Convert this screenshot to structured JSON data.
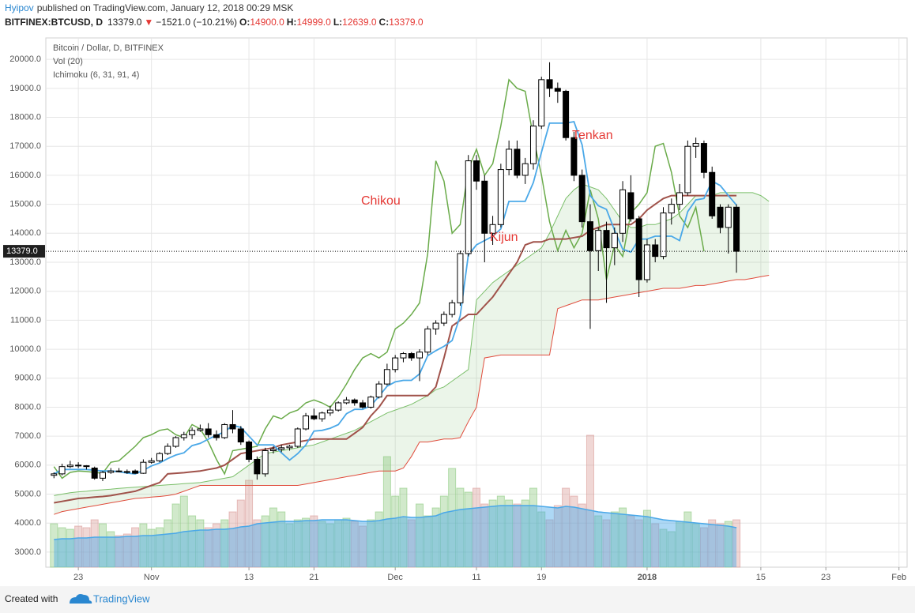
{
  "header": {
    "author": "Hyipov",
    "published": "published on TradingView.com, January 12, 2018 00:29 MSK"
  },
  "quote": {
    "symbol": "BITFINEX:BTCUSD, D",
    "last": "13379.0",
    "arrow": "▼",
    "change": "−1521.0 (−10.21%)",
    "ohlc": [
      {
        "label": "O:",
        "value": "14900.0"
      },
      {
        "label": "H:",
        "value": "14999.0"
      },
      {
        "label": "L:",
        "value": "12639.0"
      },
      {
        "label": "C:",
        "value": "13379.0"
      }
    ]
  },
  "footer": {
    "created": "Created with",
    "brand": "TradingView"
  },
  "chart_data": {
    "type": "candlestick",
    "legend": [
      "Bitcoin / Dollar, D, BITFINEX",
      "Vol (20)",
      "Ichimoku (6, 31, 91, 4)"
    ],
    "annotations": [
      "Tenkan",
      "Chikou",
      "Kijun"
    ],
    "x": [
      "2017-10-20",
      "2017-10-21",
      "2017-10-22",
      "2017-10-23",
      "2017-10-24",
      "2017-10-25",
      "2017-10-26",
      "2017-10-27",
      "2017-10-28",
      "2017-10-29",
      "2017-10-30",
      "2017-10-31",
      "2017-11-01",
      "2017-11-02",
      "2017-11-03",
      "2017-11-04",
      "2017-11-05",
      "2017-11-06",
      "2017-11-07",
      "2017-11-08",
      "2017-11-09",
      "2017-11-10",
      "2017-11-11",
      "2017-11-12",
      "2017-11-13",
      "2017-11-14",
      "2017-11-15",
      "2017-11-16",
      "2017-11-17",
      "2017-11-18",
      "2017-11-19",
      "2017-11-20",
      "2017-11-21",
      "2017-11-22",
      "2017-11-23",
      "2017-11-24",
      "2017-11-25",
      "2017-11-26",
      "2017-11-27",
      "2017-11-28",
      "2017-11-29",
      "2017-11-30",
      "2017-12-01",
      "2017-12-02",
      "2017-12-03",
      "2017-12-04",
      "2017-12-05",
      "2017-12-06",
      "2017-12-07",
      "2017-12-08",
      "2017-12-09",
      "2017-12-10",
      "2017-12-11",
      "2017-12-12",
      "2017-12-13",
      "2017-12-14",
      "2017-12-15",
      "2017-12-16",
      "2017-12-17",
      "2017-12-18",
      "2017-12-19",
      "2017-12-20",
      "2017-12-21",
      "2017-12-22",
      "2017-12-23",
      "2017-12-24",
      "2017-12-25",
      "2017-12-26",
      "2017-12-27",
      "2017-12-28",
      "2017-12-29",
      "2017-12-30",
      "2017-12-31",
      "2018-01-01",
      "2018-01-02",
      "2018-01-03",
      "2018-01-04",
      "2018-01-05",
      "2018-01-06",
      "2018-01-07",
      "2018-01-08",
      "2018-01-09",
      "2018-01-10",
      "2018-01-11",
      "2018-01-12",
      "2018-01-13",
      "2018-01-14",
      "2018-01-15",
      "2018-01-16"
    ],
    "open": [
      5650,
      5700,
      5950,
      6000,
      5980,
      5900,
      5550,
      5750,
      5800,
      5780,
      5800,
      5720,
      6100,
      6150,
      6400,
      6650,
      6950,
      7050,
      7200,
      7250,
      7050,
      6950,
      7400,
      7250,
      6800,
      6200,
      5700,
      6500,
      6550,
      6600,
      6650,
      7250,
      7700,
      7600,
      7800,
      7900,
      8150,
      8250,
      8150,
      8000,
      8350,
      8800,
      9300,
      9700,
      9850,
      9700,
      9900,
      10700,
      10900,
      11200,
      11600,
      13300,
      16500,
      15800,
      14000,
      14300,
      16200,
      16900,
      16000,
      16400,
      17700,
      19300,
      19000,
      18900,
      17300,
      16000,
      14400,
      13400,
      14100,
      13500,
      14000,
      15400,
      14500,
      12400,
      13600,
      13200,
      14700,
      15000,
      15400,
      17000,
      17100,
      16100,
      14900,
      14200,
      14900,
      null,
      null,
      null,
      null
    ],
    "high": [
      5750,
      6050,
      6150,
      6100,
      6000,
      5950,
      5800,
      5900,
      5900,
      5850,
      5850,
      6200,
      6250,
      6450,
      6750,
      7000,
      7150,
      7300,
      7400,
      7450,
      7200,
      7450,
      7900,
      7350,
      6850,
      6300,
      6600,
      6650,
      6700,
      6700,
      7300,
      7800,
      7950,
      7850,
      8050,
      8200,
      8350,
      8300,
      8250,
      8400,
      8900,
      9500,
      9800,
      9900,
      9900,
      10000,
      10800,
      11000,
      11300,
      11700,
      13400,
      16700,
      16700,
      16000,
      14600,
      16400,
      17200,
      17200,
      16600,
      17900,
      19400,
      19900,
      19200,
      18950,
      17500,
      16200,
      15000,
      14200,
      14400,
      14200,
      15800,
      16000,
      14600,
      13800,
      13800,
      14900,
      15200,
      15700,
      17200,
      17300,
      17200,
      16300,
      15000,
      15000,
      14999,
      null,
      null,
      null,
      null
    ],
    "low": [
      5550,
      5650,
      5900,
      5900,
      5850,
      5500,
      5450,
      5700,
      5750,
      5700,
      5700,
      5700,
      6050,
      6100,
      6350,
      6600,
      6850,
      6900,
      7150,
      6950,
      6850,
      6900,
      7100,
      6700,
      6100,
      5500,
      5600,
      6400,
      6450,
      6500,
      6600,
      7200,
      7550,
      7500,
      7700,
      7850,
      8100,
      8050,
      7950,
      7950,
      8300,
      8750,
      9200,
      9550,
      9600,
      8900,
      9800,
      10500,
      10800,
      11100,
      11500,
      13200,
      15500,
      13000,
      13600,
      14200,
      16000,
      15900,
      15700,
      16200,
      17600,
      18700,
      18500,
      17200,
      15800,
      14200,
      10700,
      12700,
      11600,
      12900,
      13700,
      14400,
      11800,
      12300,
      13000,
      13100,
      14300,
      14800,
      15300,
      16600,
      15900,
      14500,
      14000,
      13300,
      12639,
      null,
      null,
      null,
      null
    ],
    "close": [
      5700,
      5950,
      6000,
      5980,
      5950,
      5550,
      5750,
      5800,
      5780,
      5750,
      5720,
      6100,
      6150,
      6400,
      6650,
      6950,
      7050,
      7200,
      7250,
      7050,
      6950,
      7400,
      7250,
      6800,
      6200,
      5700,
      6500,
      6550,
      6600,
      6650,
      7250,
      7700,
      7600,
      7800,
      7900,
      8150,
      8250,
      8150,
      8000,
      8350,
      8800,
      9300,
      9700,
      9850,
      9700,
      9900,
      10700,
      10900,
      11200,
      11600,
      13300,
      16500,
      15800,
      14000,
      14300,
      16200,
      16900,
      16000,
      16400,
      17700,
      19300,
      19000,
      18900,
      17300,
      16000,
      14400,
      13400,
      14100,
      13500,
      14000,
      15500,
      14500,
      12400,
      13600,
      13200,
      14700,
      15000,
      15400,
      17000,
      17100,
      16100,
      14600,
      14200,
      14900,
      13379,
      null,
      null,
      null,
      null
    ],
    "volume": [
      55,
      50,
      48,
      52,
      50,
      60,
      55,
      45,
      40,
      42,
      50,
      55,
      48,
      50,
      60,
      80,
      90,
      65,
      60,
      50,
      55,
      60,
      70,
      85,
      110,
      60,
      65,
      75,
      70,
      55,
      60,
      62,
      65,
      58,
      55,
      60,
      62,
      58,
      52,
      60,
      70,
      140,
      90,
      100,
      60,
      80,
      65,
      75,
      90,
      125,
      100,
      95,
      100,
      80,
      85,
      90,
      85,
      80,
      85,
      100,
      70,
      60,
      78,
      100,
      90,
      80,
      167,
      65,
      60,
      70,
      75,
      65,
      60,
      72,
      55,
      48,
      45,
      58,
      70,
      55,
      50,
      60,
      55,
      58,
      60,
      null,
      null,
      null,
      null
    ],
    "volume_ma": [
      35,
      36,
      36,
      37,
      37,
      38,
      38,
      38,
      38,
      39,
      39,
      40,
      40,
      41,
      42,
      43,
      45,
      46,
      47,
      47,
      48,
      48,
      49,
      51,
      52,
      55,
      56,
      57,
      58,
      58,
      58,
      59,
      59,
      60,
      60,
      60,
      60,
      59,
      58,
      58,
      59,
      61,
      62,
      64,
      63,
      63,
      64,
      65,
      69,
      71,
      73,
      74,
      75,
      76,
      77,
      78,
      78,
      78,
      78,
      78,
      77,
      76,
      75,
      77,
      76,
      74,
      72,
      70,
      69,
      68,
      67,
      66,
      65,
      64,
      62,
      60,
      59,
      58,
      57,
      56,
      55,
      54,
      53,
      52,
      50,
      null,
      null,
      null,
      null
    ],
    "tenkan": [
      5700,
      5850,
      5850,
      5850,
      5850,
      5825,
      5800,
      5800,
      5775,
      5725,
      5700,
      5825,
      5975,
      6075,
      6225,
      6350,
      6425,
      6675,
      6750,
      6900,
      7025,
      7150,
      7375,
      7300,
      7000,
      6700,
      6700,
      6700,
      6425,
      6175,
      6400,
      6700,
      7175,
      7200,
      7275,
      7400,
      7775,
      7925,
      7925,
      8050,
      8375,
      8725,
      8875,
      8925,
      8925,
      9150,
      9775,
      9950,
      10100,
      10300,
      11150,
      13250,
      13600,
      13750,
      13900,
      14150,
      15100,
      15100,
      15100,
      15750,
      16800,
      17800,
      17800,
      17800,
      17850,
      17050,
      15300,
      14950,
      14825,
      14100,
      13450,
      13350,
      13800,
      13800,
      13900,
      13900,
      13900,
      13750,
      14750,
      15150,
      15200,
      15800,
      15650,
      15300,
      14970,
      null,
      null,
      null,
      null
    ],
    "kijun": [
      4700,
      4750,
      4800,
      4850,
      4870,
      4900,
      4920,
      4950,
      5000,
      5050,
      5100,
      5200,
      5300,
      5400,
      5700,
      5720,
      5740,
      5770,
      5800,
      5850,
      5900,
      6000,
      6200,
      6400,
      6450,
      6500,
      6550,
      6600,
      6700,
      6750,
      6800,
      6850,
      6900,
      6900,
      6900,
      6900,
      6900,
      7100,
      7300,
      7700,
      8000,
      8400,
      8400,
      8400,
      8400,
      8400,
      8400,
      8700,
      9700,
      10800,
      11000,
      11200,
      11200,
      11500,
      11800,
      12200,
      12600,
      13000,
      13600,
      13700,
      13700,
      13800,
      13800,
      13800,
      13850,
      13900,
      14100,
      14200,
      14300,
      14300,
      14300,
      14300,
      14500,
      14800,
      15000,
      15200,
      15300,
      15300,
      15300,
      15300,
      15300,
      15300,
      15300,
      15300,
      15300,
      null,
      null,
      null,
      null
    ],
    "chikou": [
      5950,
      5550,
      5750,
      5800,
      5780,
      5750,
      5720,
      6100,
      6150,
      6400,
      6650,
      6950,
      7050,
      7200,
      7250,
      7050,
      6950,
      7400,
      7250,
      6800,
      6200,
      5700,
      6500,
      6550,
      6600,
      6650,
      7250,
      7700,
      7600,
      7800,
      7900,
      8150,
      8250,
      8150,
      8000,
      8350,
      8800,
      9300,
      9700,
      9850,
      9700,
      9900,
      10700,
      10900,
      11200,
      11600,
      13300,
      16500,
      15800,
      14000,
      14300,
      16200,
      16900,
      16000,
      16400,
      17700,
      19300,
      19000,
      18900,
      17300,
      16000,
      14400,
      13400,
      14100,
      13500,
      14000,
      15500,
      14500,
      12400,
      13600,
      13200,
      14700,
      15000,
      15400,
      17000,
      17100,
      16100,
      14600,
      14200,
      14900,
      13379,
      null,
      null,
      null,
      null,
      null,
      null,
      null,
      null
    ],
    "span_a": [
      4950,
      5000,
      5050,
      5080,
      5100,
      5130,
      5150,
      5170,
      5200,
      5220,
      5240,
      5260,
      5280,
      5300,
      5320,
      5340,
      5360,
      5380,
      5400,
      5450,
      5500,
      5550,
      5600,
      5800,
      6000,
      6200,
      6400,
      6450,
      6500,
      6550,
      6600,
      6650,
      6700,
      6800,
      6900,
      7000,
      7100,
      7200,
      7350,
      7500,
      7650,
      7800,
      7900,
      8000,
      8100,
      8250,
      8400,
      8600,
      8700,
      8900,
      9100,
      9300,
      11700,
      12000,
      12300,
      12500,
      12700,
      12900,
      13100,
      13300,
      13500,
      14000,
      14600,
      15200,
      15500,
      15700,
      15600,
      15500,
      15200,
      14800,
      14400,
      14200,
      14200,
      14300,
      14300,
      14400,
      14500,
      14700,
      15000,
      15300,
      15300,
      15300,
      15400,
      15400,
      15400,
      15400,
      15400,
      15300,
      15100
    ],
    "span_b": [
      4300,
      4400,
      4450,
      4500,
      4550,
      4600,
      4650,
      4700,
      4750,
      4800,
      4850,
      4870,
      4900,
      4920,
      4950,
      5000,
      5100,
      5200,
      5300,
      5300,
      5300,
      5300,
      5300,
      5300,
      5300,
      5300,
      5300,
      5300,
      5300,
      5300,
      5300,
      5350,
      5400,
      5450,
      5500,
      5550,
      5600,
      5650,
      5700,
      5750,
      5800,
      5800,
      5800,
      5900,
      6300,
      6800,
      6800,
      6850,
      6900,
      6900,
      6950,
      7500,
      8000,
      9700,
      9750,
      9800,
      9800,
      9800,
      9800,
      9800,
      9800,
      9800,
      11400,
      11500,
      11600,
      11700,
      11700,
      11700,
      11750,
      11800,
      11850,
      11900,
      11950,
      12000,
      12050,
      12100,
      12100,
      12100,
      12150,
      12200,
      12200,
      12250,
      12300,
      12350,
      12400,
      12400,
      12450,
      12500,
      12550
    ],
    "colors": {
      "up": "#ffffff",
      "down": "#000000",
      "wick": "#000000",
      "tenkan": "#4aa8e8",
      "kijun": "#a0524a",
      "chikou": "#6aab4a",
      "span_a": "#7bbf6a",
      "span_b": "#e04c3c",
      "cloud": "#7bbf6a",
      "volume_up": "#8cc97e",
      "volume_down": "#d99a96",
      "volume_ma": "#4aa8e8"
    },
    "last_price": {
      "value": 13379,
      "label": "13379.0"
    },
    "grid": true,
    "xlim": [
      "2017-10-19",
      "2018-02-02"
    ],
    "xticks": [
      {
        "value": "2017-10-23",
        "label": "23"
      },
      {
        "value": "2017-11-01",
        "label": "Nov"
      },
      {
        "value": "2017-11-13",
        "label": "13"
      },
      {
        "value": "2017-11-21",
        "label": "21"
      },
      {
        "value": "2017-12-01",
        "label": "Dec"
      },
      {
        "value": "2017-12-11",
        "label": "11"
      },
      {
        "value": "2017-12-19",
        "label": "19"
      },
      {
        "value": "2018-01-01",
        "label": "2018"
      },
      {
        "value": "2018-01-15",
        "label": "15"
      },
      {
        "value": "2018-01-23",
        "label": "23"
      },
      {
        "value": "2018-02-01",
        "label": "Feb"
      }
    ],
    "ylim": [
      2480,
      20740
    ],
    "yticks": [
      {
        "value": 3000,
        "label": "3000.0"
      },
      {
        "value": 4000,
        "label": "4000.0"
      },
      {
        "value": 5000,
        "label": "5000.0"
      },
      {
        "value": 6000,
        "label": "6000.0"
      },
      {
        "value": 7000,
        "label": "7000.0"
      },
      {
        "value": 8000,
        "label": "8000.0"
      },
      {
        "value": 9000,
        "label": "9000.0"
      },
      {
        "value": 10000,
        "label": "10000.0"
      },
      {
        "value": 11000,
        "label": "11000.0"
      },
      {
        "value": 12000,
        "label": "12000.0"
      },
      {
        "value": 13000,
        "label": "13000.0"
      },
      {
        "value": 14000,
        "label": "14000.0"
      },
      {
        "value": 15000,
        "label": "15000.0"
      },
      {
        "value": 16000,
        "label": "16000.0"
      },
      {
        "value": 17000,
        "label": "17000.0"
      },
      {
        "value": 18000,
        "label": "18000.0"
      },
      {
        "value": 19000,
        "label": "19000.0"
      },
      {
        "value": 20000,
        "label": "20000.0"
      }
    ]
  }
}
